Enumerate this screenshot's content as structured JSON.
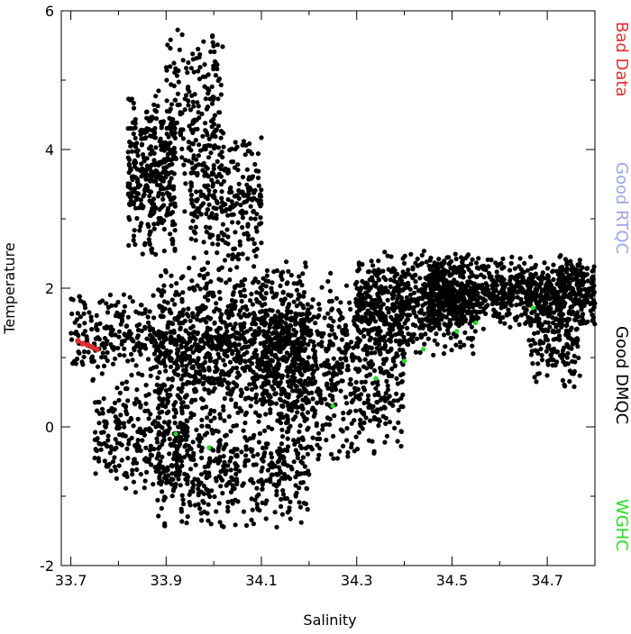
{
  "chart_data": {
    "type": "scatter",
    "xlabel": "Salinity",
    "ylabel": "Temperature",
    "xlim": [
      33.68,
      34.8
    ],
    "ylim": [
      -2,
      6
    ],
    "x_ticks": [
      "33.7",
      "33.9",
      "34.1",
      "34.3",
      "34.5",
      "34.7"
    ],
    "x_tick_values": [
      33.7,
      33.9,
      34.1,
      34.3,
      34.5,
      34.7
    ],
    "y_ticks": [
      "-2",
      "0",
      "2",
      "4",
      "6"
    ],
    "y_tick_values": [
      -2,
      0,
      2,
      4,
      6
    ],
    "grid": false,
    "legend_position": "right",
    "series": [
      {
        "name": "Bad Data",
        "color": "#e03030",
        "points": [
          [
            33.715,
            1.24
          ],
          [
            33.725,
            1.2
          ],
          [
            33.735,
            1.18
          ],
          [
            33.745,
            1.15
          ],
          [
            33.755,
            1.12
          ]
        ]
      },
      {
        "name": "Good RTQC",
        "color": "#9aa6e8",
        "points": []
      },
      {
        "name": "Good DMQC",
        "color": "#000000",
        "regions": [
          {
            "x": [
              33.7,
              33.88
            ],
            "y": [
              0.6,
              2.0
            ],
            "weight": 0.04
          },
          {
            "x": [
              33.75,
              33.95
            ],
            "y": [
              -1.0,
              0.8
            ],
            "weight": 0.05
          },
          {
            "x": [
              33.82,
              33.92
            ],
            "y": [
              2.4,
              4.9
            ],
            "weight": 0.07
          },
          {
            "x": [
              33.9,
              34.02
            ],
            "y": [
              3.0,
              5.9
            ],
            "weight": 0.04
          },
          {
            "x": [
              33.95,
              34.1
            ],
            "y": [
              2.2,
              4.4
            ],
            "weight": 0.05
          },
          {
            "x": [
              33.88,
              34.2
            ],
            "y": [
              -1.6,
              0.4
            ],
            "weight": 0.09
          },
          {
            "x": [
              33.88,
              34.2
            ],
            "y": [
              0.0,
              2.4
            ],
            "weight": 0.2
          },
          {
            "x": [
              34.1,
              34.4
            ],
            "y": [
              -0.6,
              2.4
            ],
            "weight": 0.14
          },
          {
            "x": [
              34.3,
              34.55
            ],
            "y": [
              1.0,
              2.6
            ],
            "weight": 0.12
          },
          {
            "x": [
              34.45,
              34.8
            ],
            "y": [
              1.4,
              2.5
            ],
            "weight": 0.16
          },
          {
            "x": [
              34.66,
              34.77
            ],
            "y": [
              0.5,
              2.3
            ],
            "weight": 0.04
          }
        ]
      },
      {
        "name": "WGHC",
        "color": "#22dd22",
        "points": [
          [
            33.92,
            -0.1
          ],
          [
            33.99,
            -0.3
          ],
          [
            34.25,
            0.3
          ],
          [
            34.34,
            0.7
          ],
          [
            34.4,
            0.95
          ],
          [
            34.44,
            1.12
          ],
          [
            34.51,
            1.38
          ],
          [
            34.55,
            1.5
          ],
          [
            34.67,
            1.72
          ]
        ]
      }
    ]
  }
}
